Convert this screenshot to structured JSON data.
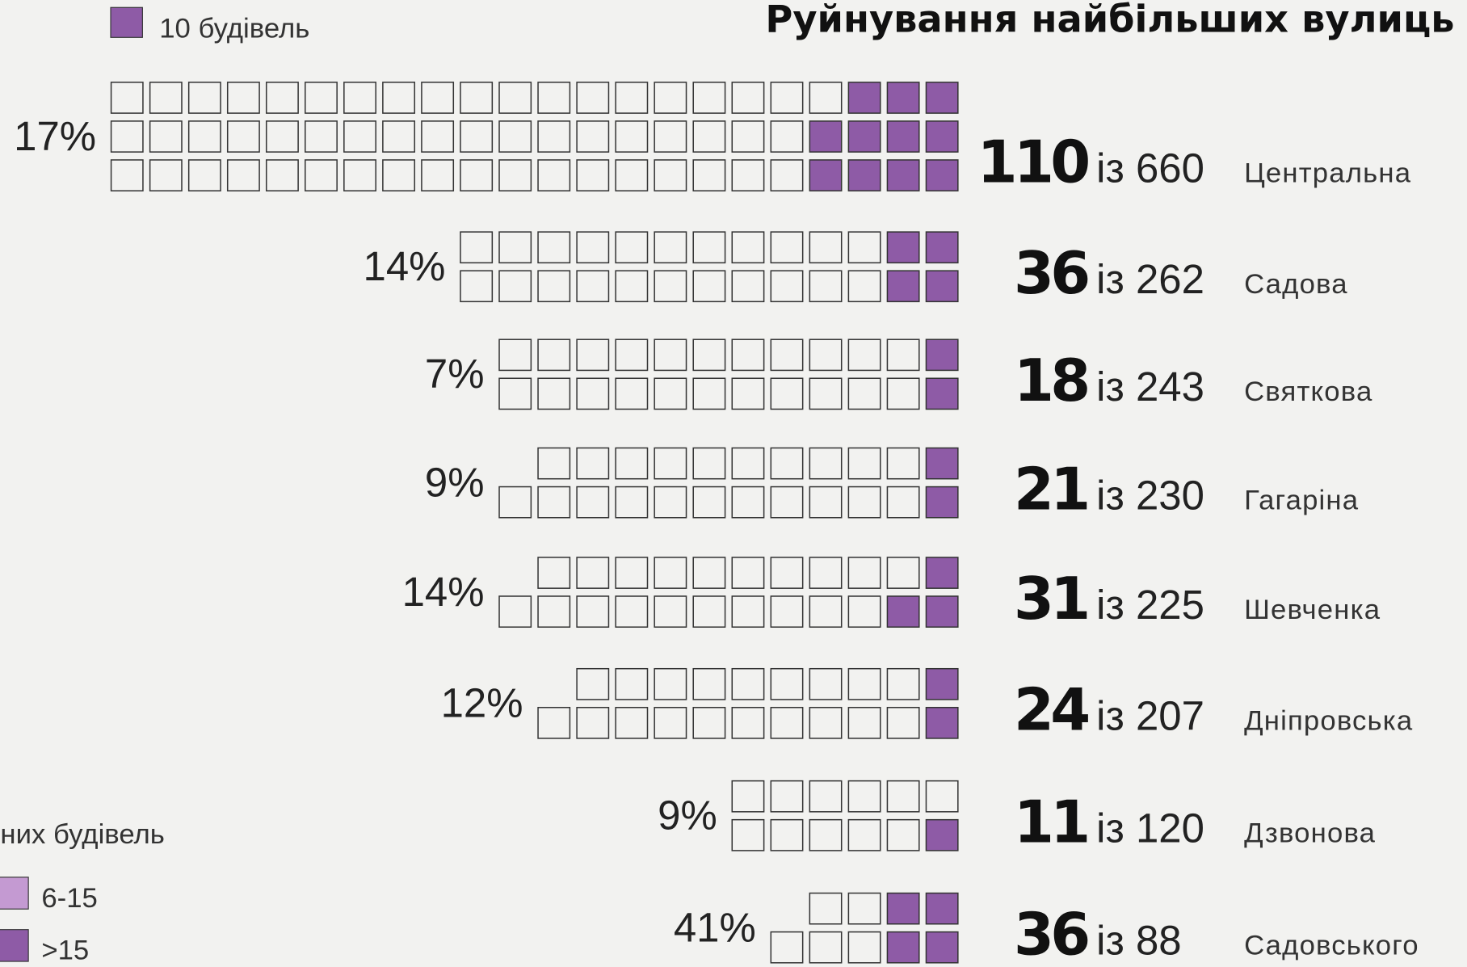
{
  "chart_data": {
    "type": "waffle",
    "title": "Руйнування найбільших вулиць",
    "unit": 10,
    "unit_label": "10 будівель",
    "connector": "із",
    "color": "#8e5ba6",
    "legend": {
      "title": "них будівель",
      "items": [
        {
          "label": "6-15",
          "color": "#c49ad2"
        },
        {
          "label": ">15",
          "color": "#8e5ba6"
        }
      ]
    },
    "categories": [
      "Центральна",
      "Садова",
      "Святкова",
      "Гагаріна",
      "Шевченка",
      "Дніпровська",
      "Дзвонова",
      "Садовського"
    ],
    "destroyed": [
      110,
      36,
      18,
      21,
      31,
      24,
      11,
      36
    ],
    "totals": [
      660,
      262,
      243,
      230,
      225,
      207,
      120,
      88
    ],
    "values": [
      17,
      14,
      7,
      9,
      14,
      12,
      9,
      41
    ],
    "value_labels": [
      "17%",
      "14%",
      "7%",
      "9%",
      "14%",
      "12%",
      "9%",
      "41%"
    ]
  }
}
